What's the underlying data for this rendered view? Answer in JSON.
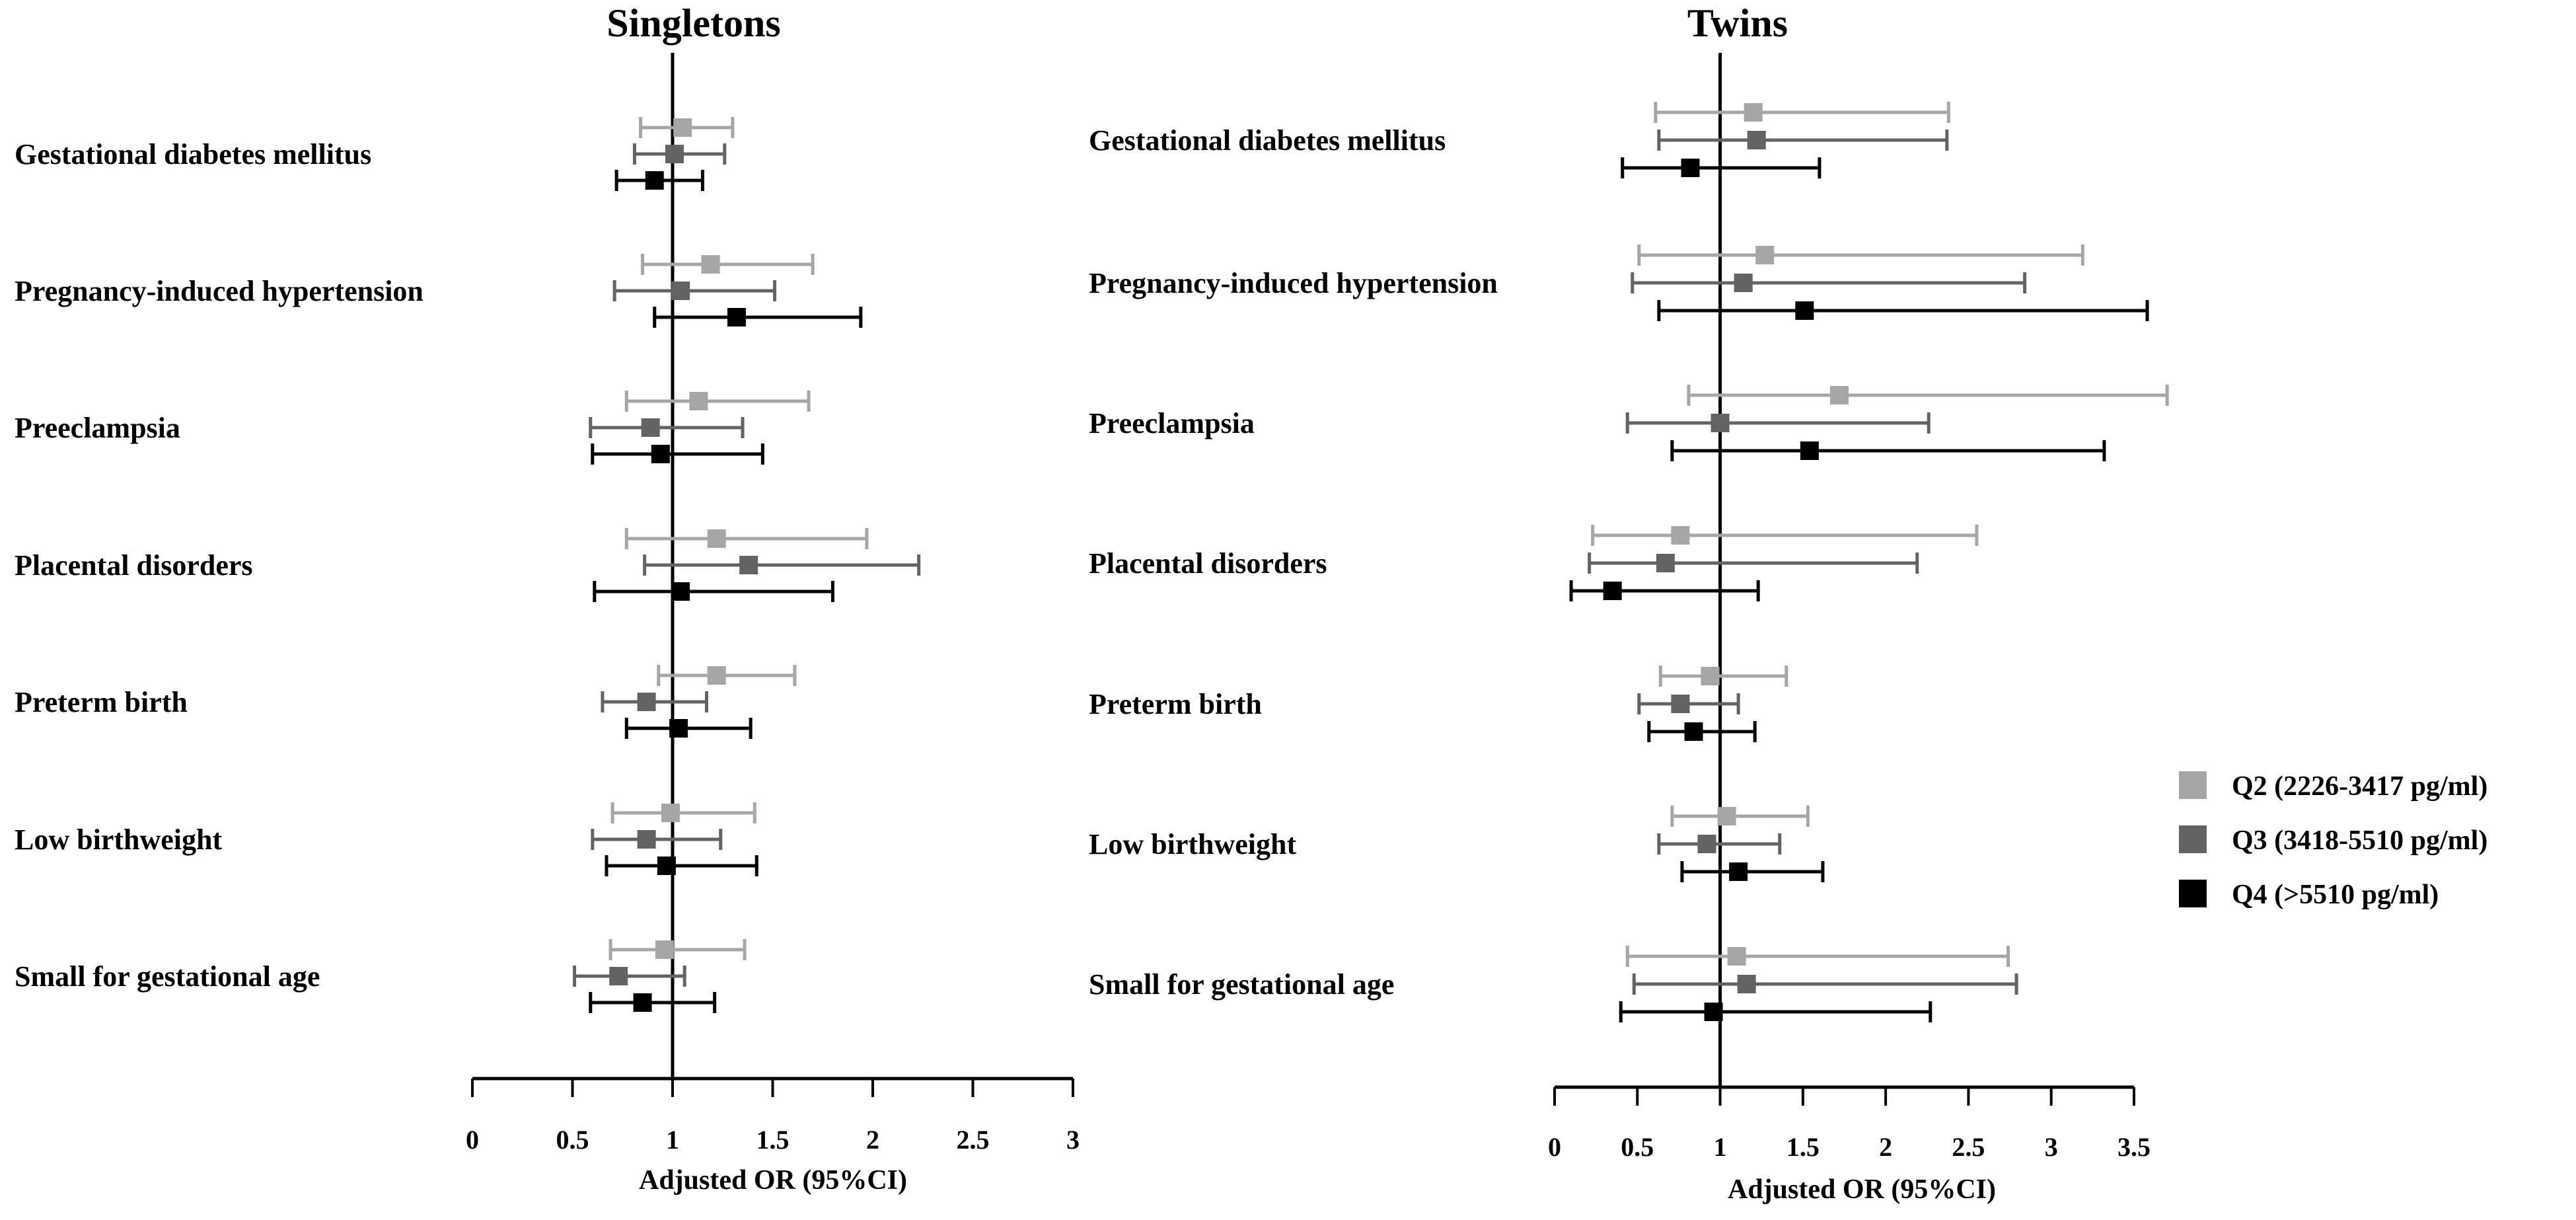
{
  "colors": {
    "Q2": "#a6a6a6",
    "Q3": "#636363",
    "Q4": "#000000"
  },
  "chart_data": [
    {
      "type": "forest",
      "title": "Singletons",
      "xlabel": "Adjusted OR (95%CI)",
      "xlim": [
        0,
        3
      ],
      "xticks": [
        "0",
        "0.5",
        "1",
        "1.5",
        "2",
        "2.5",
        "3"
      ],
      "reference_line": 1,
      "categories": [
        "Gestational diabetes mellitus",
        "Pregnancy-induced hypertension",
        "Preeclampsia",
        "Placental disorders",
        "Preterm birth",
        "Low birthweight",
        "Small for gestational age"
      ],
      "series": [
        {
          "name": "Q2 (2226-3417 pg/ml)",
          "key": "Q2",
          "or": [
            1.05,
            1.19,
            1.13,
            1.22,
            1.22,
            0.99,
            0.96
          ],
          "lo": [
            0.84,
            0.85,
            0.77,
            0.77,
            0.93,
            0.7,
            0.69
          ],
          "hi": [
            1.3,
            1.7,
            1.68,
            1.97,
            1.61,
            1.41,
            1.36
          ]
        },
        {
          "name": "Q3 (3418-5510 pg/ml)",
          "key": "Q3",
          "or": [
            1.01,
            1.04,
            0.89,
            1.38,
            0.87,
            0.87,
            0.73
          ],
          "lo": [
            0.81,
            0.71,
            0.59,
            0.86,
            0.65,
            0.6,
            0.51
          ],
          "hi": [
            1.26,
            1.51,
            1.35,
            2.23,
            1.17,
            1.24,
            1.06
          ]
        },
        {
          "name": "Q4 (>5510 pg/ml)",
          "key": "Q4",
          "or": [
            0.91,
            1.32,
            0.94,
            1.04,
            1.03,
            0.97,
            0.85
          ],
          "lo": [
            0.72,
            0.91,
            0.6,
            0.61,
            0.77,
            0.67,
            0.59
          ],
          "hi": [
            1.15,
            1.94,
            1.45,
            1.8,
            1.39,
            1.42,
            1.21
          ]
        }
      ]
    },
    {
      "type": "forest",
      "title": "Twins",
      "xlabel": "Adjusted OR (95%CI)",
      "xlim": [
        0,
        3.5
      ],
      "xticks": [
        "0",
        "0.5",
        "1",
        "1.5",
        "2",
        "2.5",
        "3",
        "3.5"
      ],
      "reference_line": 1,
      "categories": [
        "Gestational diabetes mellitus",
        "Pregnancy-induced hypertension",
        "Preeclampsia",
        "Placental disorders",
        "Preterm birth",
        "Low birthweight",
        "Small for gestational age"
      ],
      "series": [
        {
          "name": "Q2 (2226-3417 pg/ml)",
          "key": "Q2",
          "or": [
            1.2,
            1.27,
            1.72,
            0.76,
            0.94,
            1.04,
            1.1
          ],
          "lo": [
            0.61,
            0.51,
            0.81,
            0.23,
            0.64,
            0.71,
            0.44
          ],
          "hi": [
            2.38,
            3.19,
            3.7,
            2.55,
            1.4,
            1.53,
            2.74
          ]
        },
        {
          "name": "Q3 (3418-5510 pg/ml)",
          "key": "Q3",
          "or": [
            1.22,
            1.14,
            1.0,
            0.67,
            0.76,
            0.92,
            1.16
          ],
          "lo": [
            0.63,
            0.47,
            0.44,
            0.21,
            0.51,
            0.63,
            0.48
          ],
          "hi": [
            2.37,
            2.84,
            2.26,
            2.19,
            1.11,
            1.36,
            2.79
          ]
        },
        {
          "name": "Q4 (>5510 pg/ml)",
          "key": "Q4",
          "or": [
            0.82,
            1.51,
            1.54,
            0.35,
            0.84,
            1.11,
            0.96
          ],
          "lo": [
            0.41,
            0.63,
            0.71,
            0.1,
            0.57,
            0.77,
            0.4
          ],
          "hi": [
            1.6,
            3.58,
            3.32,
            1.23,
            1.21,
            1.62,
            2.27
          ]
        }
      ]
    }
  ],
  "legend": {
    "position": "right",
    "items": [
      {
        "key": "Q2",
        "label": "Q2 (2226-3417 pg/ml)"
      },
      {
        "key": "Q3",
        "label": "Q3 (3418-5510 pg/ml)"
      },
      {
        "key": "Q4",
        "label": "Q4 (>5510 pg/ml)"
      }
    ]
  }
}
